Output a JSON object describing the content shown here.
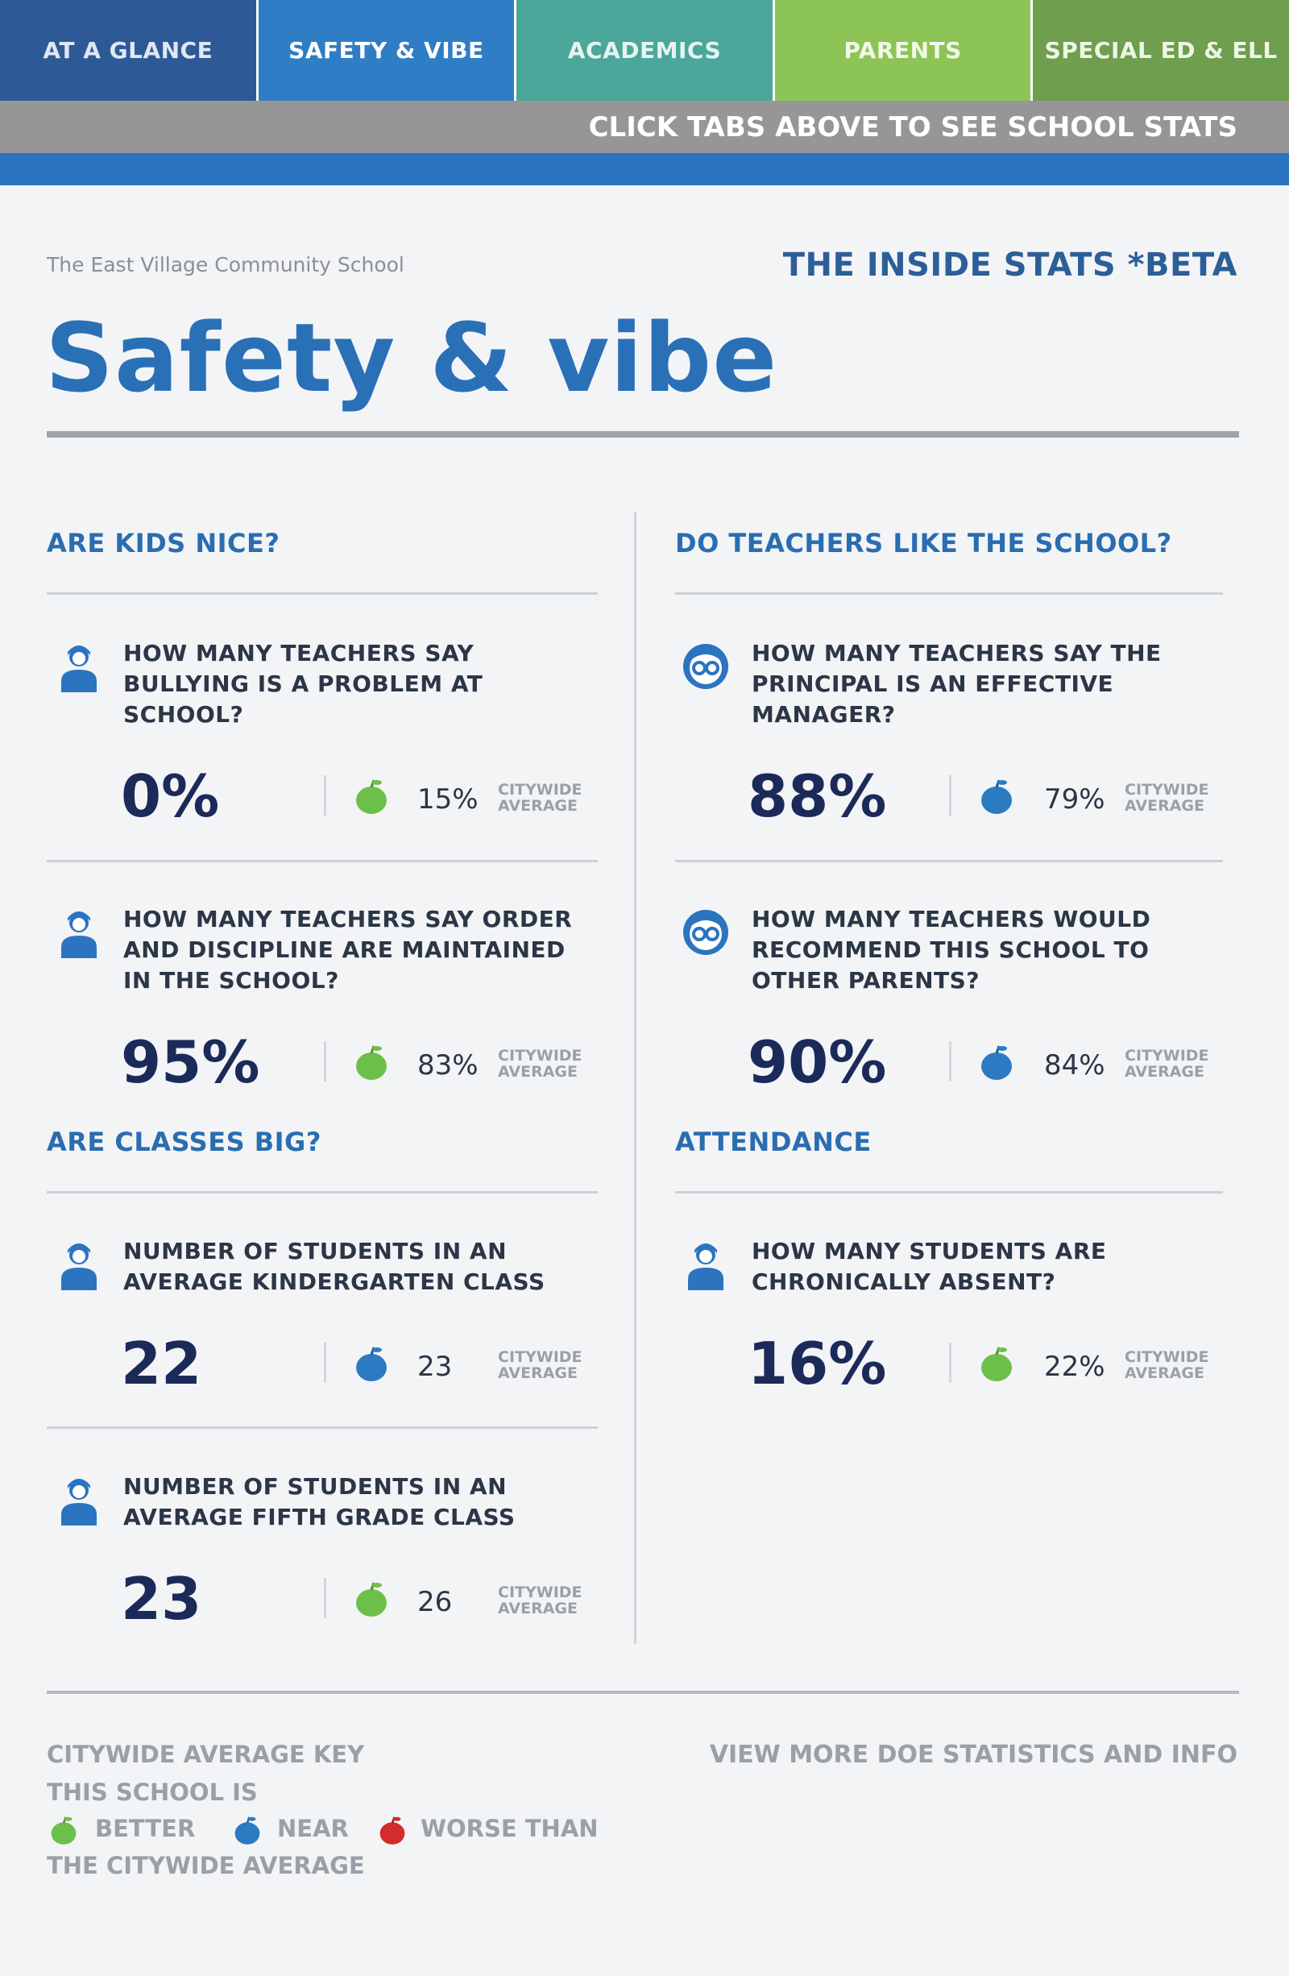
{
  "nav": {
    "tabs": [
      "AT A GLANCE",
      "SAFETY & VIBE",
      "ACADEMICS",
      "PARENTS",
      "SPECIAL ED & ELL"
    ],
    "hint": "CLICK TABS ABOVE TO SEE SCHOOL STATS"
  },
  "header": {
    "school_name": "The East Village Community School",
    "inside_stats": "THE INSIDE STATS *BETA",
    "title": "Safety & vibe"
  },
  "sections": {
    "kids_nice": {
      "heading": "ARE KIDS NICE?",
      "stats": [
        {
          "question": "HOW MANY TEACHERS SAY BULLYING IS A PROBLEM AT SCHOOL?",
          "value": "0%",
          "citywide": "15%",
          "label": "CITYWIDE AVERAGE",
          "rating": "better",
          "icon": "student-icon"
        },
        {
          "question": "HOW MANY TEACHERS SAY ORDER AND DISCIPLINE ARE MAINTAINED IN THE SCHOOL?",
          "value": "95%",
          "citywide": "83%",
          "label": "CITYWIDE AVERAGE",
          "rating": "better",
          "icon": "student-icon"
        }
      ]
    },
    "teachers_like": {
      "heading": "DO TEACHERS LIKE THE SCHOOL?",
      "stats": [
        {
          "question": "HOW MANY TEACHERS SAY THE PRINCIPAL IS AN EFFECTIVE MANAGER?",
          "value": "88%",
          "citywide": "79%",
          "label": "CITYWIDE AVERAGE",
          "rating": "near",
          "icon": "teacher-glasses-icon"
        },
        {
          "question": "HOW MANY TEACHERS WOULD RECOMMEND THIS SCHOOL TO OTHER PARENTS?",
          "value": "90%",
          "citywide": "84%",
          "label": "CITYWIDE AVERAGE",
          "rating": "near",
          "icon": "teacher-glasses-icon"
        }
      ]
    },
    "classes_big": {
      "heading": "ARE CLASSES BIG?",
      "stats": [
        {
          "question": "NUMBER OF STUDENTS IN AN AVERAGE KINDERGARTEN CLASS",
          "value": "22",
          "citywide": "23",
          "label": "CITYWIDE AVERAGE",
          "rating": "near",
          "icon": "student-icon"
        },
        {
          "question": "NUMBER OF STUDENTS IN AN AVERAGE FIFTH GRADE CLASS",
          "value": "23",
          "citywide": "26",
          "label": "CITYWIDE AVERAGE",
          "rating": "better",
          "icon": "student-icon"
        }
      ]
    },
    "attendance": {
      "heading": "ATTENDANCE",
      "stats": [
        {
          "question": "HOW MANY STUDENTS ARE CHRONICALLY ABSENT?",
          "value": "16%",
          "citywide": "22%",
          "label": "CITYWIDE AVERAGE",
          "rating": "better",
          "icon": "student-icon"
        }
      ]
    }
  },
  "footer": {
    "key_title": "CITYWIDE AVERAGE KEY",
    "key_sub": "THIS SCHOOL IS",
    "key_items": [
      "BETTER",
      "NEAR",
      "WORSE THAN"
    ],
    "key_foot": "THE CITYWIDE AVERAGE",
    "more_link": "VIEW MORE DOE STATISTICS AND INFO"
  },
  "colors": {
    "better": "#6cc04a",
    "near": "#2c7bc2",
    "worse": "#d42b2b",
    "accent": "#2a70b7"
  }
}
